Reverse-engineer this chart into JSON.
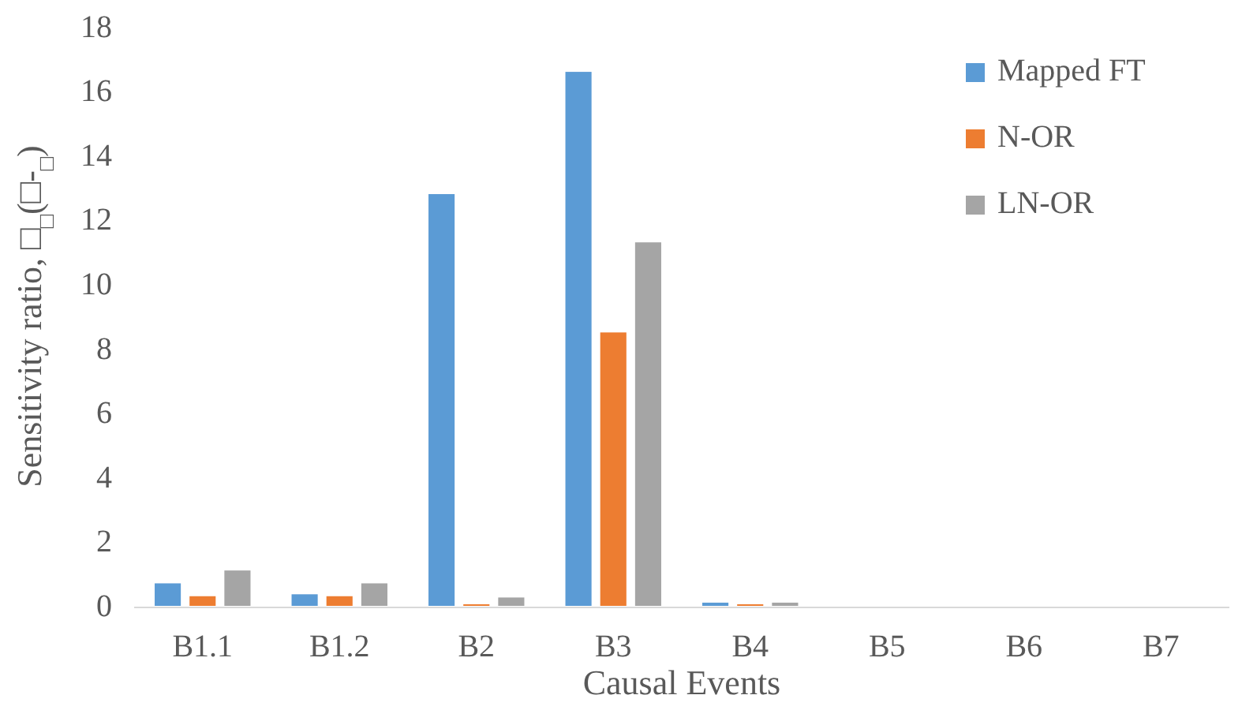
{
  "chart_data": {
    "type": "bar",
    "xlabel": "Causal Events",
    "ylabel": "Sensitivity ratio, □$_{□}$(□-$_{□}$)",
    "categories": [
      "B1.1",
      "B1.2",
      "B2",
      "B3",
      "B4",
      "B5",
      "B6",
      "B7"
    ],
    "series": [
      {
        "name": "Mapped FT",
        "color": "#5b9bd5",
        "values": [
          0.7,
          0.36,
          12.8,
          16.6,
          0.1,
          0,
          0,
          0
        ]
      },
      {
        "name": "N-OR",
        "color": "#ed7d31",
        "values": [
          0.3,
          0.3,
          0.05,
          8.5,
          0.05,
          0,
          0,
          0
        ]
      },
      {
        "name": "LN-OR",
        "color": "#a5a5a5",
        "values": [
          1.1,
          0.7,
          0.26,
          11.3,
          0.1,
          0,
          0,
          0
        ]
      }
    ],
    "ylim": [
      0,
      18
    ],
    "yticks": [
      0,
      2,
      4,
      6,
      8,
      10,
      12,
      14,
      16,
      18
    ],
    "grid": false,
    "legend": "top right"
  }
}
